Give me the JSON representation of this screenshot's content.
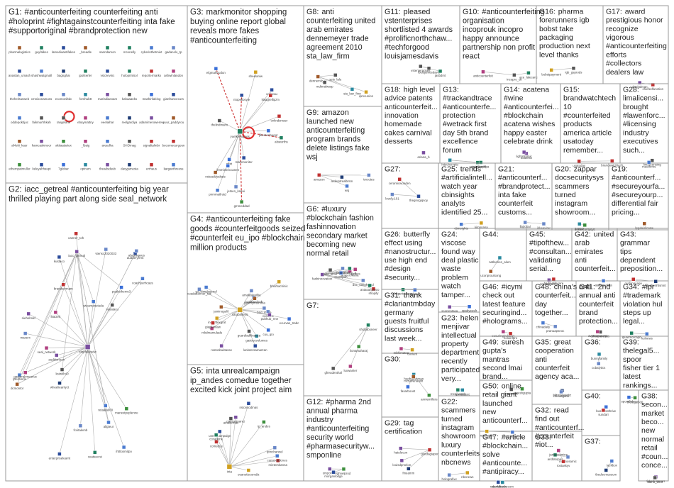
{
  "groups": [
    {
      "id": "G1",
      "terms": [
        "#anticounterfeiting counterfeiting anti",
        "#holoprint #fightagainstcounterfeiting inta fake",
        "#supportoriginal #brandprotection new"
      ]
    },
    {
      "id": "G2",
      "terms": [
        "iacc_getreal #anticounterfeiting big year",
        "thrilled playing part along side seal_network"
      ]
    },
    {
      "id": "G3",
      "terms": [
        "markmonitor shopping",
        "buying online report global",
        "reveals more fakes",
        "#anticounterfeiting"
      ]
    },
    {
      "id": "G4",
      "terms": [
        "#anticounterfeiting fake",
        "goods #counterfeitgoods seized",
        "#counterfeit eu_ipo #blockchain",
        "million products"
      ]
    },
    {
      "id": "G5",
      "terms": [
        "inta unrealcampaign",
        "ip_andes comedue together",
        "excited kick joint project aim"
      ]
    },
    {
      "id": "G6",
      "terms": [
        "#luxury",
        "#blockchain fashion",
        "fashinnovation",
        "secondary market",
        "becoming new",
        "normal retail"
      ]
    },
    {
      "id": "G7",
      "terms": []
    },
    {
      "id": "G8",
      "terms": [
        "anti",
        "counterfeiting united",
        "arab emirates",
        "dennemeyer trade",
        "agreement 2010",
        "sta_law_firm"
      ]
    },
    {
      "id": "G9",
      "terms": [
        "amazon",
        "launched new",
        "anticounterfeiting",
        "program brands",
        "delete listings fake",
        "wsj"
      ]
    },
    {
      "id": "G10",
      "terms": [
        "#anticounterfeiting",
        "organisation",
        "incoprouk incopro",
        "happy announce",
        "partnership non profit",
        "react"
      ]
    },
    {
      "id": "G11",
      "terms": [
        "pleased",
        "vstenterprises",
        "shortlisted 4 awards",
        "#prolificnorthchaw...",
        "#techforgood",
        "louisjamesdavis"
      ]
    },
    {
      "id": "G12",
      "terms": [
        "#pharma 2nd",
        "annual pharma",
        "industry",
        "#anticounterfeiting",
        "security world",
        "#pharmasecurityw...",
        "smponline"
      ]
    },
    {
      "id": "G13",
      "terms": [
        "",
        "#trackandtrace",
        "#anticounterfe...",
        "protection",
        "#wetrack first",
        "day 5th brand",
        "excellence",
        "forum"
      ]
    },
    {
      "id": "G14",
      "terms": [
        "acatena",
        "#wine",
        "#anticounterfei...",
        "#blockchain",
        "acatena wishes",
        "happy easter",
        "celebrate drink"
      ]
    },
    {
      "id": "G15",
      "terms": [
        "",
        "brandwatchtech",
        "10",
        "#counterfeited",
        "products",
        "america article",
        "usatoday",
        "remember..."
      ]
    },
    {
      "id": "G16",
      "terms": [
        "pharma",
        "forerunners igb",
        "bobst take",
        "packaging",
        "production next",
        "level thanks"
      ]
    },
    {
      "id": "G17",
      "terms": [
        "award",
        "prestigious honor",
        "recognize",
        "vigorous",
        "#anticounterfeiting",
        "efforts",
        "#collectors",
        "dealers law"
      ]
    },
    {
      "id": "G18",
      "terms": [
        "high level",
        "advice patents",
        "anticounterfeit...",
        "innovation",
        "homemade",
        "cakes carnival",
        "desserts"
      ]
    },
    {
      "id": "G19",
      "terms": [
        "",
        "#anticounterf...",
        "#secureyourfa...",
        "#secureyourp...",
        "differential fair",
        "pricing..."
      ]
    },
    {
      "id": "G20",
      "terms": [
        "zappar",
        "docsecuritysys",
        "scammers",
        "turned",
        "instagram",
        "showroom..."
      ]
    },
    {
      "id": "G21",
      "terms": [
        "",
        "#anticounterf...",
        "#brandprotect...",
        "inta fake",
        "counterfeit",
        "customs..."
      ]
    },
    {
      "id": "G22",
      "terms": [
        "",
        "scammers",
        "turned",
        "instagram",
        "showroom",
        "luxury",
        "counterfeits",
        "nbcnews"
      ]
    },
    {
      "id": "G23",
      "terms": [
        "helen",
        "menjivar",
        "intellectual",
        "property",
        "department",
        "recently",
        "participated",
        "very..."
      ]
    },
    {
      "id": "G24",
      "terms": [
        "",
        "viscose",
        "found way",
        "deal plastic",
        "waste",
        "problem",
        "watch",
        "tamper..."
      ]
    },
    {
      "id": "G25",
      "terms": [
        "trends",
        "#artificialintell...",
        "watch year",
        "cbinsights",
        "analyts",
        "identified 25..."
      ]
    },
    {
      "id": "G26",
      "terms": [
        "butterfly",
        "effect using",
        "#nanostructur...",
        "use high end",
        "#design",
        "#security..."
      ]
    },
    {
      "id": "G27",
      "terms": []
    },
    {
      "id": "G28",
      "terms": [
        "",
        "limalicensi...",
        "brought",
        "#lawenforc...",
        "#licensing",
        "industry",
        "executives",
        "such..."
      ]
    },
    {
      "id": "G29",
      "terms": [
        "tag",
        "certification"
      ]
    },
    {
      "id": "G30",
      "terms": []
    },
    {
      "id": "G31",
      "terms": [
        "thank",
        "#clariantmbday",
        "germany",
        "guests fruitful",
        "discussions",
        "last week..."
      ]
    },
    {
      "id": "G32",
      "terms": [
        "read",
        "find out",
        "#anticounterf...",
        "#counterfeit",
        "#iot..."
      ]
    },
    {
      "id": "G33",
      "terms": []
    },
    {
      "id": "G34",
      "terms": [
        "#ipr",
        "#trademark",
        "violation hul",
        "steps up",
        "legal..."
      ]
    },
    {
      "id": "G35",
      "terms": [
        "great",
        "cooperation",
        "anti",
        "counterfeit",
        "agency aca..."
      ]
    },
    {
      "id": "G36",
      "terms": []
    },
    {
      "id": "G37",
      "terms": []
    },
    {
      "id": "G38",
      "terms": [
        "",
        "secon...",
        "market",
        "beco...",
        "new",
        "normal",
        "retail",
        "#coun...",
        "conce..."
      ]
    },
    {
      "id": "G39",
      "terms": [
        "",
        "thelegal5...",
        "spoor",
        "fisher tier 1",
        "latest",
        "rankings..."
      ]
    },
    {
      "id": "G40",
      "terms": []
    },
    {
      "id": "G41",
      "terms": [
        "2nd",
        "annual anti",
        "counterfeit",
        "brand",
        "protection..."
      ]
    },
    {
      "id": "G42",
      "terms": [
        "united",
        "arab",
        "emirates",
        "anti",
        "counterfeit..."
      ]
    },
    {
      "id": "G43",
      "terms": [
        "",
        "grammar",
        "tips",
        "dependent",
        "preposition..."
      ]
    },
    {
      "id": "G44",
      "terms": []
    },
    {
      "id": "G45",
      "terms": [
        "",
        "#tipofthew...",
        "#consultan...",
        "validating",
        "serial..."
      ]
    },
    {
      "id": "G46",
      "terms": [
        "#icymi",
        "check out",
        "latest feature",
        "securingind...",
        "#holograms..."
      ]
    },
    {
      "id": "G47",
      "terms": [
        "#article",
        "#blockchain...",
        "solve",
        "#anticounte...",
        "#antipiracy..."
      ]
    },
    {
      "id": "G48",
      "terms": [
        "china's anti",
        "counterfeit...",
        "day",
        "together..."
      ]
    },
    {
      "id": "G49",
      "terms": [
        "suresh",
        "gupta's",
        "mantras",
        "second lmai",
        "brand..."
      ]
    },
    {
      "id": "G50",
      "terms": [
        "online",
        "retail giant",
        "launched",
        "new",
        "anticounterf..."
      ]
    }
  ],
  "nodes": {
    "G1": [
      "pharmalogistics",
      "guyfalkes",
      "lamediaantifakes",
      "_breadle",
      "sanndamon",
      "mcenelly",
      "cyberinthetmiet",
      "gadacelo_tp",
      "anastan_umash",
      "shashwatgmall",
      "bagnghai",
      "jpol4erler",
      "vstorevinc",
      "holoprintsol",
      "reportermarkx",
      "ashwinlandon",
      "theheritasweb",
      "cmnixonamuss",
      "ecomoniltdc",
      "fornhub8",
      "marisdiaexam",
      "kahaaanks",
      "mashinfaking",
      "gianfrancecurs",
      "oddepokbjuc",
      "faikmurhhkah",
      "rangelahe",
      "ebaymattny",
      "eeelaihar",
      "reelgardiya",
      "adamimerowerew",
      "yuur_paddyrou",
      "af4ski_kaur",
      "hamcaskmoor",
      "akitaatartex",
      "_lbaig",
      "areedha",
      "SHOmag",
      "signaltalmbr",
      "becomeourgoun",
      "ethempatmuller",
      "keleyahhaupt",
      "7globar",
      "opinum",
      "theadsduub",
      "davyjamesta",
      "errhaus",
      "karganthreess"
    ],
    "G2": [
      "stopfakesdw",
      "enterpriselearnt",
      "auditionoon",
      "lyterbmrlo",
      "coachyerhcaus",
      "wheelieanlyzt",
      "gasbrrakmeanuc",
      "manestpoplenne",
      "fcvitalemb",
      "dcmontor",
      "seyatacu",
      "audderyfrmt",
      "peakstheme3",
      "iacc_getreal",
      "camrer_toh",
      "wteamanetuda",
      "abestwaves",
      "ceatteecst",
      "allgteur",
      "vtensc2020033",
      "mazerx",
      "retaala000",
      "seal_network",
      "kuldaco",
      "lkatzeit",
      "nieholmaf",
      "brandscrmam",
      "ksiwkh40",
      "ihtttosmitpo"
    ],
    "G3": [
      "yuelkemopres",
      "alsworths",
      "corbeau",
      "jetsen_kasai",
      "spirt",
      "gmmeddad",
      "thelindmarix",
      "ovkndsmaer",
      "markmonitor",
      "elgmahtrudun",
      "nsteaddyakate",
      "kisagrellipzm",
      "sheelaniw",
      "ntopellosyie",
      "jibentenbugor",
      "jimmiebriccanen",
      "pnmmatlrutd"
    ],
    "G4": [
      "carabinieri5",
      "gastrucvolumes",
      "guardiadifinanza",
      "jaminogel0",
      "bnd_inasa",
      "rostonbuktasse",
      "rootaaadoak",
      "gaboandagenel",
      "mkdmamuladu",
      "lanistersamarzan",
      "ecurvas_trabc",
      "bhorbachinic",
      "indiantexgrat",
      "cunsuro",
      "cuadabanner_tac",
      "jeremyintomhla",
      "cuu_ipo",
      "pubhub_rme",
      "giaglianlaw",
      "amalaslevillia"
    ],
    "G5": [
      "inta",
      "unrealcampaign",
      "nstonsodinas",
      "oeanetiscomdiz",
      "ip_andes",
      "comedue",
      "mieterskanna",
      "gonzasjuarez",
      "ipmchannel",
      "comcroaticnes",
      "ainaltemas",
      "ccnatkrne"
    ],
    "G6": [
      "fashinnovation",
      "ameeroriana",
      "shopify",
      "doc_enlightend",
      "antasanpietro",
      "ayrikos",
      "julio_slmo",
      "rearbyvin",
      "iretsey_1",
      "sajanahm"
    ],
    "G7": [
      "shobabxneer",
      "luxwanter",
      "gfreudenthal",
      "lionamaharaj"
    ],
    "G8": [
      "dennemeyer",
      "seis_lalu",
      "sta_law_firm",
      "ipmcunion",
      "mdtmalwarp"
    ],
    "G9": [
      "amazon",
      "ardemtrealbrsm",
      "wsj",
      "tmcotes"
    ],
    "G10": [
      "incopro_uk",
      "anticounterfeit",
      "ace_lalecanc"
    ],
    "G11": [
      "vstenterprises",
      "louisjamesdavis",
      "jasbdmt"
    ],
    "G12": [
      "ghnelprod",
      "smponline",
      "morganlodge"
    ],
    "G13": [
      "hitechcrypto",
      "uniquitinapd",
      "grimbarthpa"
    ],
    "G14": [
      "acatena",
      "lightstromic"
    ],
    "G15": [
      "brandwatchtech",
      "usatoday"
    ],
    "G16": [
      "igb_gsprods",
      "bobstpayment"
    ],
    "G17": [
      "drmkalman",
      "chiefedfunction"
    ],
    "G18": [
      "ariana_b"
    ],
    "G19": [
      "lpgdaiclimate"
    ],
    "G20": [
      "zappar",
      "docsecuritysys"
    ],
    "G21": [
      "ikkeavirer",
      "lbglobal"
    ],
    "G22": [
      "holografixx",
      "nbcnews"
    ],
    "G23": [
      "arrestdent",
      "menjivarvit"
    ],
    "G24": [
      "scerrentsaa",
      "spabyeesfr"
    ],
    "G25": [
      "cbinsights",
      "kitonnasa"
    ],
    "G26": [
      "schaurt",
      "theperiodiana"
    ],
    "G27": [
      "thegnogiqsoy",
      "lovely.101",
      "ceramicwooden"
    ],
    "G28": [
      "limalicensing",
      "meetfirms"
    ],
    "G29": [
      "giordagiaper",
      "louisdpmelon",
      "hatelecon",
      "fineamm"
    ],
    "G30": [
      "hughgassman",
      "anniemillers",
      "fasarboost",
      "mcsavanaudit"
    ],
    "G31": [
      "clariant",
      "mbhimatee"
    ],
    "G32": [
      "nesmosamic",
      "andtatopas"
    ],
    "G33": [
      "rostaskyv",
      "jamesvomine"
    ],
    "G34": [
      "hulnews",
      "ipuarmorcapb"
    ],
    "G35": [
      "blitzmasterbz",
      "chinaagarin"
    ],
    "G36": [
      "cobalytics",
      "bunnyfamily"
    ],
    "G37": [
      "tackbox",
      "thedocmuseum"
    ],
    "G38": [
      "fakebusterarr",
      "tiamo_inno"
    ],
    "G39": [
      "thelegal500",
      "spoorfisher"
    ],
    "G40": [
      "businessthrive",
      "sundari"
    ],
    "G41": [
      "pharmaiesda",
      "avestagacorp"
    ],
    "G42": [
      "ataliansolsta"
    ],
    "G43": [
      "stephenhtsmnt",
      "ourlanguage"
    ],
    "G44": [
      "natlseries_alum",
      "uconproutsong"
    ],
    "G45": [
      "proceanarmy",
      "hadmalifecare"
    ],
    "G46": [
      "securingindustry",
      "holoinfpro"
    ],
    "G47": [
      "oamblesurecom",
      "rabovaltech"
    ],
    "G48": [
      "chinadaily",
      "pranuapseoc"
    ],
    "G49": [
      "sureshgupta",
      "lmaiusion"
    ],
    "G50": [
      "retailgiant",
      "marcanswers"
    ]
  },
  "colors": {
    "frame": "#9a9a9a",
    "edge": "#b0b0b0",
    "highlight": "#e03030",
    "text": "#222222"
  }
}
